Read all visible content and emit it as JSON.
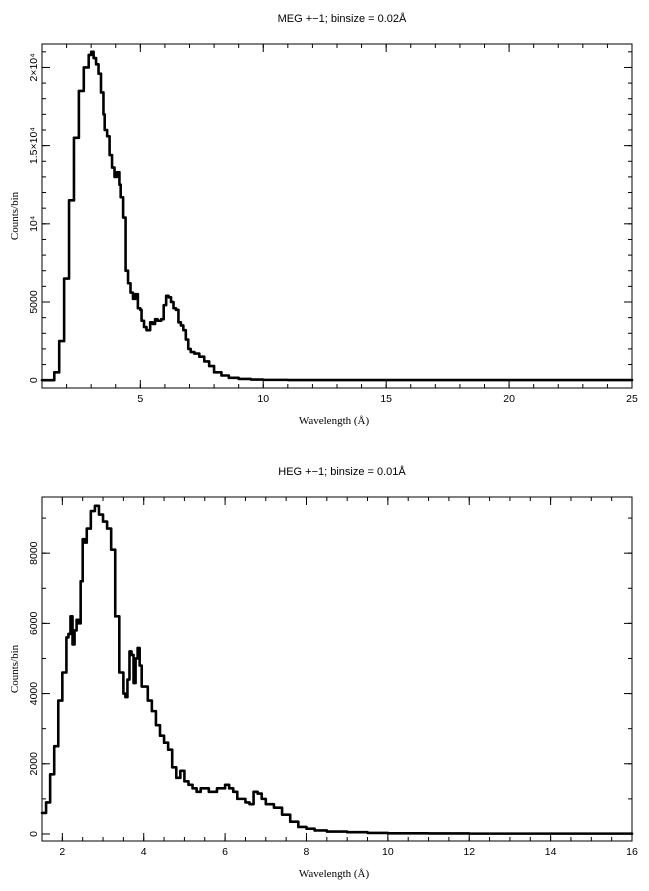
{
  "chart_data": [
    {
      "type": "line",
      "title": "MEG +−1; binsize = 0.02Å",
      "xlabel": "Wavelength (Å)",
      "ylabel": "Counts/bin",
      "xlim": [
        1.0,
        25.0
      ],
      "ylim": [
        -500,
        21500
      ],
      "xticks": [
        5,
        10,
        15,
        20,
        25
      ],
      "xtick_labels": [
        "5",
        "10",
        "15",
        "20",
        "25"
      ],
      "xminor_step": 1,
      "yticks": [
        0,
        5000,
        10000,
        15000,
        20000
      ],
      "ytick_labels": [
        "0",
        "5000",
        "10⁴",
        "1.5×10⁴",
        "2×10⁴"
      ],
      "yminor_step": 1000,
      "grid": false,
      "series": [
        {
          "x": [
            1.0,
            1.3,
            1.5,
            1.7,
            1.9,
            2.1,
            2.3,
            2.5,
            2.7,
            2.9,
            3.0,
            3.1,
            3.2,
            3.3,
            3.4,
            3.5,
            3.55,
            3.65,
            3.75,
            3.85,
            3.95,
            4.05,
            4.15,
            4.2,
            4.3,
            4.4,
            4.5,
            4.6,
            4.7,
            4.8,
            4.9,
            5.0,
            5.05,
            5.15,
            5.25,
            5.4,
            5.5,
            5.6,
            5.7,
            5.85,
            5.95,
            6.05,
            6.15,
            6.25,
            6.35,
            6.45,
            6.55,
            6.65,
            6.75,
            6.85,
            6.95,
            7.05,
            7.2,
            7.4,
            7.6,
            7.8,
            8.0,
            8.3,
            8.6,
            9.0,
            9.5,
            10.0,
            11.0,
            12.0,
            14.0,
            16.0,
            18.0,
            20.0,
            22.0,
            24.0,
            25.0
          ],
          "y": [
            0,
            0,
            500,
            2500,
            6500,
            11500,
            15500,
            18500,
            20000,
            20800,
            21000,
            20600,
            20200,
            19600,
            18400,
            17000,
            16000,
            15600,
            14400,
            13600,
            13000,
            13300,
            12500,
            11700,
            10400,
            7000,
            6200,
            5600,
            5200,
            5500,
            4600,
            4500,
            3800,
            3400,
            3200,
            3700,
            3600,
            3900,
            3800,
            3900,
            4800,
            5400,
            5300,
            5000,
            4600,
            4500,
            3700,
            3500,
            3200,
            2600,
            2000,
            1800,
            1700,
            1500,
            1200,
            900,
            500,
            300,
            150,
            80,
            40,
            20,
            10,
            5,
            5,
            5,
            5,
            5,
            5,
            5,
            5
          ]
        }
      ]
    },
    {
      "type": "line",
      "title": "HEG +−1; binsize = 0.01Å",
      "xlabel": "Wavelength (Å)",
      "ylabel": "Counts/bin",
      "xlim": [
        1.5,
        16.0
      ],
      "ylim": [
        -200,
        9600
      ],
      "xticks": [
        2,
        4,
        6,
        8,
        10,
        12,
        14,
        16
      ],
      "xtick_labels": [
        "2",
        "4",
        "6",
        "8",
        "10",
        "12",
        "14",
        "16"
      ],
      "xminor_step": 0.5,
      "yticks": [
        0,
        2000,
        4000,
        6000,
        8000
      ],
      "ytick_labels": [
        "0",
        "2000",
        "4000",
        "6000",
        "8000"
      ],
      "yminor_step": 1000,
      "grid": false,
      "series": [
        {
          "x": [
            1.5,
            1.6,
            1.7,
            1.8,
            1.9,
            2.0,
            2.1,
            2.15,
            2.2,
            2.25,
            2.3,
            2.35,
            2.4,
            2.45,
            2.5,
            2.55,
            2.6,
            2.7,
            2.8,
            2.9,
            3.0,
            3.1,
            3.2,
            3.3,
            3.4,
            3.5,
            3.55,
            3.6,
            3.65,
            3.7,
            3.75,
            3.8,
            3.85,
            3.9,
            3.95,
            4.0,
            4.1,
            4.2,
            4.3,
            4.4,
            4.5,
            4.6,
            4.7,
            4.8,
            4.9,
            5.0,
            5.1,
            5.2,
            5.3,
            5.4,
            5.6,
            5.8,
            6.0,
            6.1,
            6.2,
            6.3,
            6.4,
            6.5,
            6.6,
            6.7,
            6.8,
            6.9,
            7.0,
            7.2,
            7.4,
            7.6,
            7.8,
            8.0,
            8.2,
            8.5,
            9.0,
            9.5,
            10.0,
            11.0,
            12.0,
            13.0,
            14.0,
            15.0,
            16.0
          ],
          "y": [
            600,
            900,
            1700,
            2500,
            3800,
            4600,
            5600,
            5700,
            6200,
            5400,
            5800,
            6100,
            6000,
            7200,
            8400,
            8300,
            8700,
            9200,
            9350,
            9100,
            8900,
            8700,
            8100,
            6200,
            4600,
            4000,
            3900,
            4400,
            5200,
            5100,
            4300,
            5000,
            5300,
            4800,
            4200,
            4200,
            3800,
            3500,
            3100,
            2800,
            2600,
            2400,
            1900,
            1600,
            1800,
            1500,
            1400,
            1300,
            1200,
            1300,
            1200,
            1300,
            1400,
            1300,
            1200,
            1000,
            1000,
            900,
            850,
            1200,
            1150,
            1000,
            850,
            750,
            550,
            350,
            200,
            150,
            100,
            70,
            50,
            30,
            20,
            15,
            10,
            10,
            10,
            10,
            10
          ]
        }
      ]
    }
  ]
}
